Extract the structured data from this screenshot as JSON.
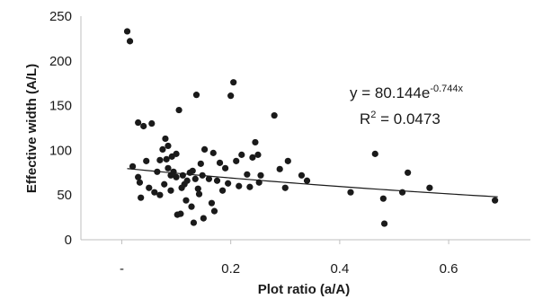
{
  "chart_data": {
    "type": "scatter",
    "xlabel": "Plot ratio (a/A)",
    "ylabel": "Effective width (A/L)",
    "xlim": [
      -0.075,
      0.75
    ],
    "ylim": [
      0,
      250
    ],
    "x_ticks": [
      {
        "value": 0,
        "label": "-"
      },
      {
        "value": 0.2,
        "label": "0.2"
      },
      {
        "value": 0.4,
        "label": "0.4"
      },
      {
        "value": 0.6,
        "label": "0.6"
      }
    ],
    "y_ticks": [
      0,
      50,
      100,
      150,
      200,
      250
    ],
    "grid": false,
    "colors": {
      "points": "#1a1a1a",
      "trendline": "#1a1a1a",
      "axis": "#bfbfbf"
    },
    "annotation": {
      "equation_prefix": "y = 80.144e",
      "equation_exponent": "-0.744x",
      "r2_prefix": "R",
      "r2_sup": "2",
      "r2_value": " = 0.0473"
    },
    "trendline": {
      "type": "exponential",
      "a": 80.144,
      "b": -0.744,
      "x_range": [
        0.01,
        0.69
      ]
    },
    "points": [
      {
        "x": 0.01,
        "y": 233
      },
      {
        "x": 0.015,
        "y": 222
      },
      {
        "x": 0.02,
        "y": 82
      },
      {
        "x": 0.03,
        "y": 131
      },
      {
        "x": 0.03,
        "y": 70
      },
      {
        "x": 0.033,
        "y": 64
      },
      {
        "x": 0.035,
        "y": 47
      },
      {
        "x": 0.04,
        "y": 127
      },
      {
        "x": 0.045,
        "y": 88
      },
      {
        "x": 0.05,
        "y": 58
      },
      {
        "x": 0.055,
        "y": 130
      },
      {
        "x": 0.06,
        "y": 53
      },
      {
        "x": 0.065,
        "y": 76
      },
      {
        "x": 0.07,
        "y": 89
      },
      {
        "x": 0.07,
        "y": 50
      },
      {
        "x": 0.075,
        "y": 101
      },
      {
        "x": 0.078,
        "y": 62
      },
      {
        "x": 0.08,
        "y": 113
      },
      {
        "x": 0.082,
        "y": 90
      },
      {
        "x": 0.085,
        "y": 105
      },
      {
        "x": 0.085,
        "y": 80
      },
      {
        "x": 0.09,
        "y": 72
      },
      {
        "x": 0.09,
        "y": 55
      },
      {
        "x": 0.092,
        "y": 93
      },
      {
        "x": 0.095,
        "y": 76
      },
      {
        "x": 0.1,
        "y": 96
      },
      {
        "x": 0.1,
        "y": 70
      },
      {
        "x": 0.102,
        "y": 28
      },
      {
        "x": 0.105,
        "y": 145
      },
      {
        "x": 0.108,
        "y": 29
      },
      {
        "x": 0.11,
        "y": 58
      },
      {
        "x": 0.112,
        "y": 72
      },
      {
        "x": 0.115,
        "y": 62
      },
      {
        "x": 0.118,
        "y": 44
      },
      {
        "x": 0.12,
        "y": 66
      },
      {
        "x": 0.125,
        "y": 75
      },
      {
        "x": 0.128,
        "y": 37
      },
      {
        "x": 0.13,
        "y": 77
      },
      {
        "x": 0.132,
        "y": 19
      },
      {
        "x": 0.135,
        "y": 68
      },
      {
        "x": 0.137,
        "y": 162
      },
      {
        "x": 0.14,
        "y": 57
      },
      {
        "x": 0.142,
        "y": 51
      },
      {
        "x": 0.145,
        "y": 85
      },
      {
        "x": 0.148,
        "y": 72
      },
      {
        "x": 0.15,
        "y": 24
      },
      {
        "x": 0.152,
        "y": 101
      },
      {
        "x": 0.16,
        "y": 68
      },
      {
        "x": 0.165,
        "y": 41
      },
      {
        "x": 0.168,
        "y": 97
      },
      {
        "x": 0.17,
        "y": 32
      },
      {
        "x": 0.175,
        "y": 66
      },
      {
        "x": 0.18,
        "y": 86
      },
      {
        "x": 0.185,
        "y": 55
      },
      {
        "x": 0.19,
        "y": 80
      },
      {
        "x": 0.195,
        "y": 63
      },
      {
        "x": 0.2,
        "y": 161
      },
      {
        "x": 0.205,
        "y": 176
      },
      {
        "x": 0.21,
        "y": 88
      },
      {
        "x": 0.215,
        "y": 60
      },
      {
        "x": 0.22,
        "y": 95
      },
      {
        "x": 0.23,
        "y": 73
      },
      {
        "x": 0.235,
        "y": 59
      },
      {
        "x": 0.24,
        "y": 92
      },
      {
        "x": 0.245,
        "y": 109
      },
      {
        "x": 0.25,
        "y": 95
      },
      {
        "x": 0.252,
        "y": 64
      },
      {
        "x": 0.255,
        "y": 72
      },
      {
        "x": 0.28,
        "y": 139
      },
      {
        "x": 0.29,
        "y": 79
      },
      {
        "x": 0.3,
        "y": 58
      },
      {
        "x": 0.305,
        "y": 88
      },
      {
        "x": 0.33,
        "y": 72
      },
      {
        "x": 0.34,
        "y": 66
      },
      {
        "x": 0.42,
        "y": 53
      },
      {
        "x": 0.465,
        "y": 96
      },
      {
        "x": 0.48,
        "y": 46
      },
      {
        "x": 0.482,
        "y": 18
      },
      {
        "x": 0.515,
        "y": 53
      },
      {
        "x": 0.525,
        "y": 75
      },
      {
        "x": 0.565,
        "y": 58
      },
      {
        "x": 0.685,
        "y": 44
      }
    ]
  }
}
